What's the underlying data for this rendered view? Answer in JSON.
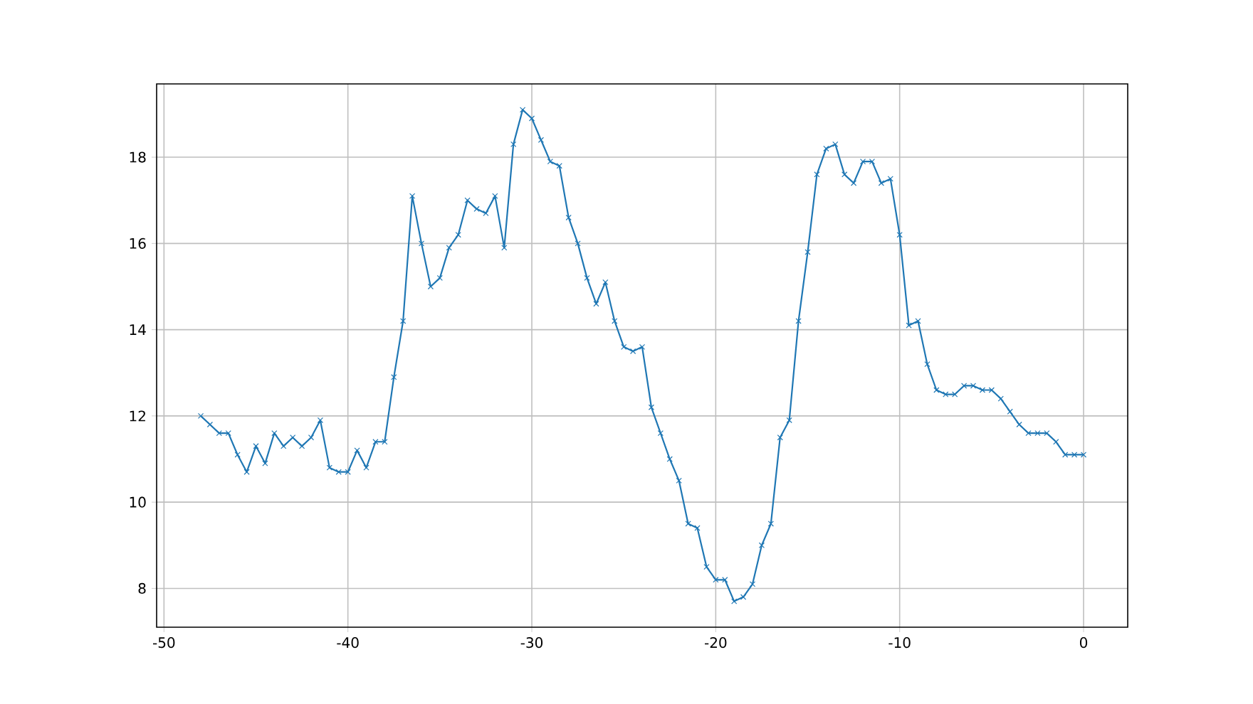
{
  "chart_data": {
    "type": "line",
    "x": [
      -48,
      -47.5,
      -47,
      -46.5,
      -46,
      -45.5,
      -45,
      -44.5,
      -44,
      -43.5,
      -43,
      -42.5,
      -42,
      -41.5,
      -41,
      -40.5,
      -40,
      -39.5,
      -39,
      -38.5,
      -38,
      -37.5,
      -37,
      -36.5,
      -36,
      -35.5,
      -35,
      -34.5,
      -34,
      -33.5,
      -33,
      -32.5,
      -32,
      -31.5,
      -31,
      -30.5,
      -30,
      -29.5,
      -29,
      -28.5,
      -28,
      -27.5,
      -27,
      -26.5,
      -26,
      -25.5,
      -25,
      -24.5,
      -24,
      -23.5,
      -23,
      -22.5,
      -22,
      -21.5,
      -21,
      -20.5,
      -20,
      -19.5,
      -19,
      -18.5,
      -18,
      -17.5,
      -17,
      -16.5,
      -16,
      -15.5,
      -15,
      -14.5,
      -14,
      -13.5,
      -13,
      -12.5,
      -12,
      -11.5,
      -11,
      -10.5,
      -10,
      -9.5,
      -9,
      -8.5,
      -8,
      -7.5,
      -7,
      -6.5,
      -6,
      -5.5,
      -5,
      -4.5,
      -4,
      -3.5,
      -3,
      -2.5,
      -2,
      -1.5,
      -1,
      -0.5,
      0
    ],
    "series": [
      {
        "color": "#1f77b4",
        "values": [
          12.0,
          11.8,
          11.6,
          11.6,
          11.1,
          10.7,
          11.3,
          10.9,
          11.6,
          11.3,
          11.5,
          11.3,
          11.5,
          11.9,
          10.8,
          10.7,
          10.7,
          11.2,
          10.8,
          11.4,
          11.4,
          12.9,
          14.2,
          17.1,
          16.0,
          15.0,
          15.2,
          15.9,
          16.2,
          17.0,
          16.8,
          16.7,
          17.1,
          15.9,
          18.3,
          19.1,
          18.9,
          18.4,
          17.9,
          17.8,
          16.6,
          16.0,
          15.2,
          14.6,
          15.1,
          14.2,
          13.6,
          13.5,
          13.6,
          12.2,
          11.6,
          11.0,
          10.5,
          9.5,
          9.4,
          8.5,
          8.2,
          8.2,
          7.7,
          7.8,
          8.1,
          9.0,
          9.5,
          11.5,
          11.9,
          14.2,
          15.8,
          17.6,
          18.2,
          18.3,
          17.6,
          17.4,
          17.9,
          17.9,
          17.4,
          17.5,
          16.2,
          14.1,
          14.2,
          13.2,
          12.6,
          12.5,
          12.5,
          12.7,
          12.7,
          12.6,
          12.6,
          12.4,
          12.1,
          11.8,
          11.6,
          11.6,
          11.6,
          11.4,
          11.1,
          11.1,
          11.1
        ]
      }
    ],
    "xlim": [
      -50.4,
      2.4
    ],
    "ylim": [
      7.1,
      19.7
    ],
    "xticks": [
      -50,
      -40,
      -30,
      -20,
      -10,
      0
    ],
    "yticks": [
      8,
      10,
      12,
      14,
      16,
      18
    ],
    "grid": true,
    "marker": "cross",
    "line_style": "solid"
  }
}
